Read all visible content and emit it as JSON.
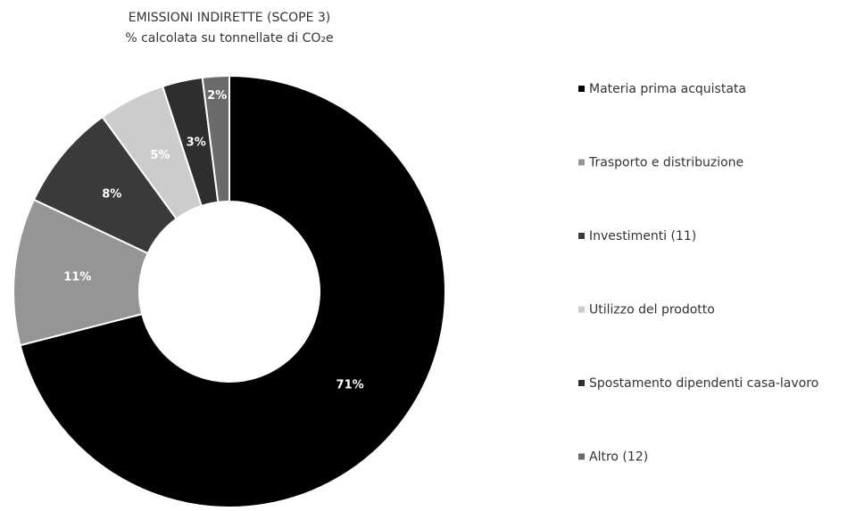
{
  "chart_data": {
    "type": "donut",
    "title": "EMISSIONI INDIRETTE (SCOPE 3)",
    "subtitle": "% calcolata su tonnellate di CO₂e",
    "categories": [
      "Materia prima acquistata",
      "Trasporto e distribuzione",
      "Investimenti (11)",
      "Utilizzo del prodotto",
      "Spostamento dipendenti casa-lavoro",
      "Altro (12)"
    ],
    "values": [
      71,
      11,
      8,
      5,
      3,
      2
    ],
    "value_labels": [
      "71%",
      "11%",
      "8%",
      "5%",
      "3%",
      "2%"
    ],
    "colors": [
      "#000000",
      "#959595",
      "#3a3a3a",
      "#cccccc",
      "#2e2e2e",
      "#6b6b6b"
    ]
  }
}
